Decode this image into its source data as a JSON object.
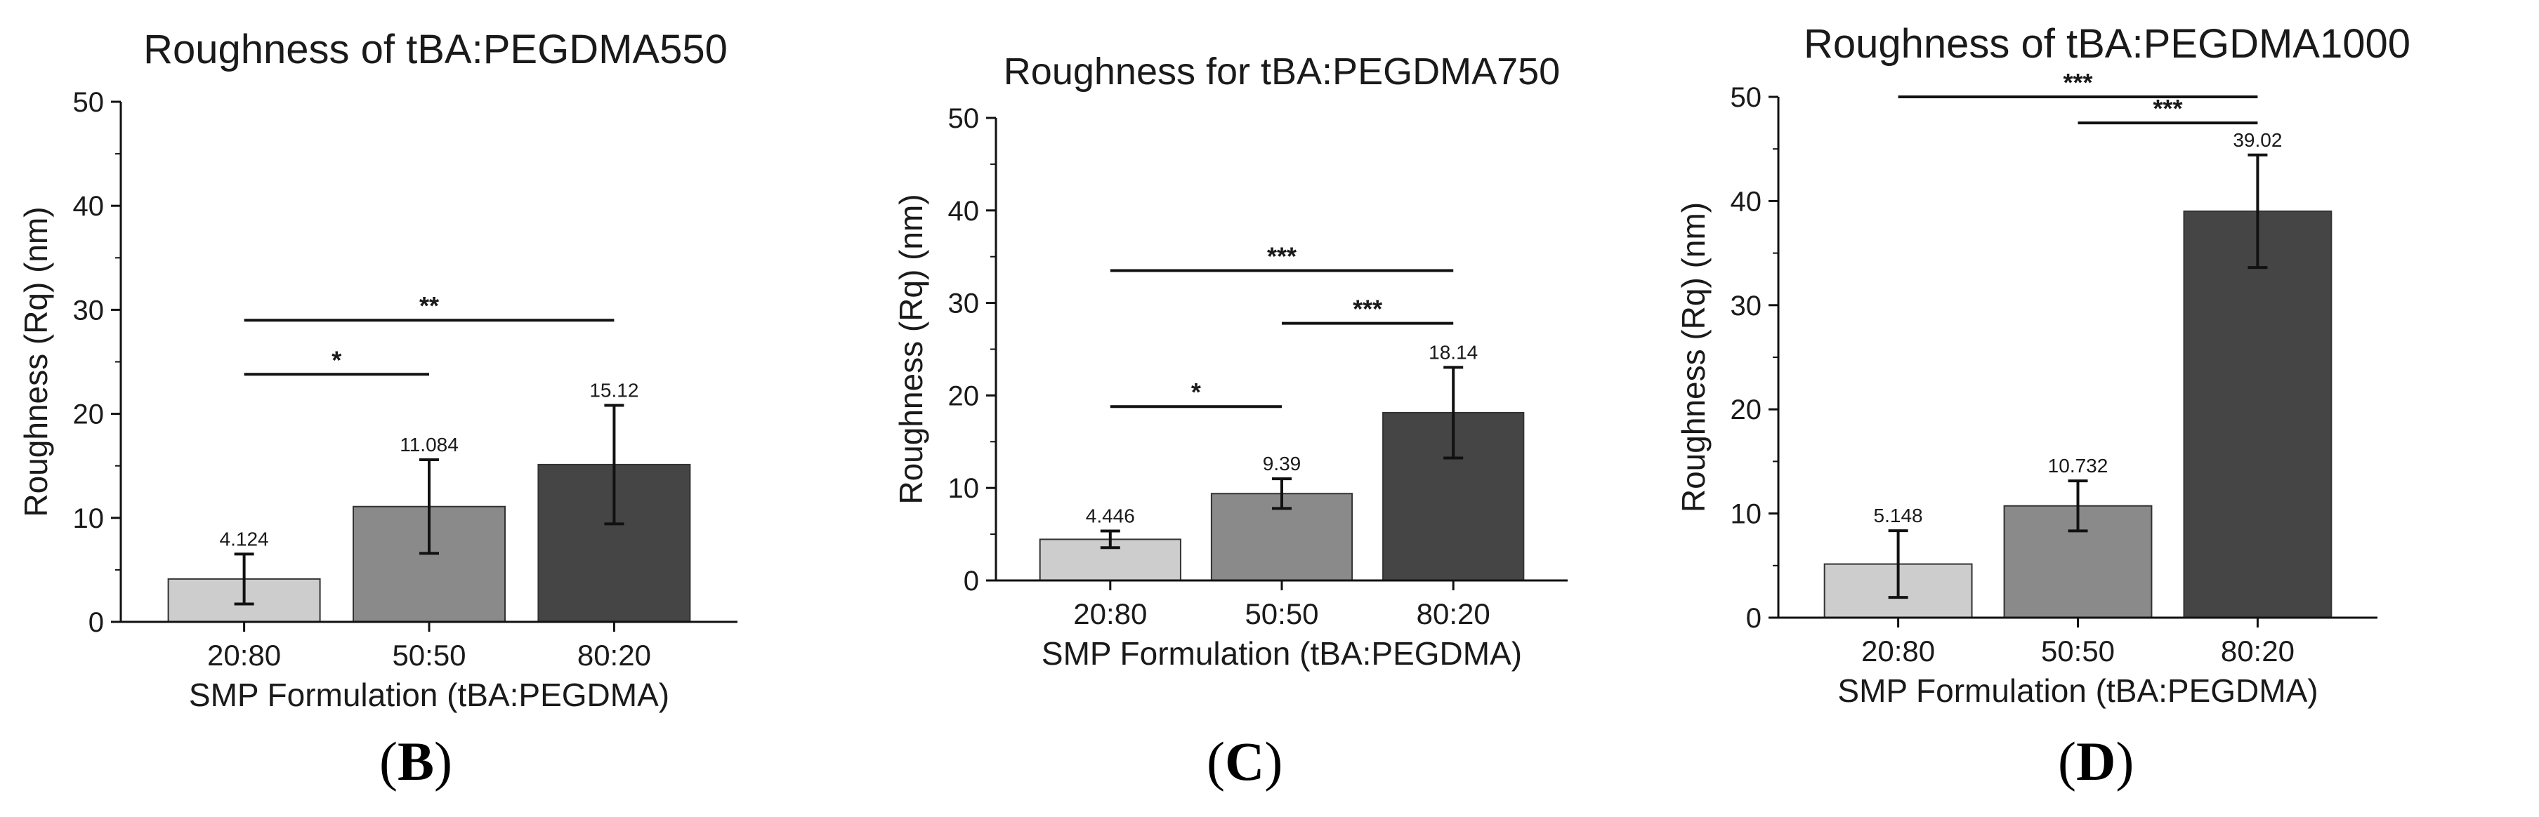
{
  "colors": {
    "axis": "#111111",
    "bar_fills": [
      "#cdcdcd",
      "#8a8a8a",
      "#454545"
    ],
    "bar_stroke": "#333333",
    "text": "#1a1a1a"
  },
  "panel_letters": [
    {
      "open": "(",
      "letter": "B",
      "close": ")"
    },
    {
      "open": "(",
      "letter": "C",
      "close": ")"
    },
    {
      "open": "(",
      "letter": "D",
      "close": ")"
    }
  ],
  "chart_data": [
    {
      "type": "bar",
      "title": "Roughness of tBA:PEGDMA550",
      "xlabel": "SMP Formulation (tBA:PEGDMA)",
      "ylabel": "Roughness (Rq) (nm)",
      "categories": [
        "20:80",
        "50:50",
        "80:20"
      ],
      "values": [
        4.124,
        11.084,
        15.12
      ],
      "value_labels": [
        "4.124",
        "11.084",
        "15.12"
      ],
      "error": [
        2.4,
        4.5,
        5.7
      ],
      "ylim": [
        0,
        50
      ],
      "yticks": [
        "0",
        "10",
        "20",
        "30",
        "40",
        "50"
      ],
      "grid": false,
      "significance": [
        {
          "from": 0,
          "to": 2,
          "y": 29,
          "label": "**"
        },
        {
          "from": 0,
          "to": 1,
          "y": 23.8,
          "label": "*"
        }
      ]
    },
    {
      "type": "bar",
      "title": "Roughness for tBA:PEGDMA750",
      "xlabel": "SMP Formulation (tBA:PEGDMA)",
      "ylabel": "Roughness (Rq) (nm)",
      "categories": [
        "20:80",
        "50:50",
        "80:20"
      ],
      "values": [
        4.446,
        9.39,
        18.14
      ],
      "value_labels": [
        "4.446",
        "9.39",
        "18.14"
      ],
      "error": [
        0.9,
        1.6,
        4.9
      ],
      "ylim": [
        0,
        50
      ],
      "yticks": [
        "0",
        "10",
        "20",
        "30",
        "40",
        "50"
      ],
      "grid": false,
      "significance": [
        {
          "from": 0,
          "to": 2,
          "y": 33.5,
          "label": "***"
        },
        {
          "from": 1,
          "to": 2,
          "y": 27.8,
          "label": "***"
        },
        {
          "from": 0,
          "to": 1,
          "y": 18.8,
          "label": "*"
        }
      ]
    },
    {
      "type": "bar",
      "title": "Roughness of tBA:PEGDMA1000",
      "xlabel": "SMP Formulation (tBA:PEGDMA)",
      "ylabel": "Roughness (Rq) (nm)",
      "categories": [
        "20:80",
        "50:50",
        "80:20"
      ],
      "values": [
        5.148,
        10.732,
        39.02
      ],
      "value_labels": [
        "5.148",
        "10.732",
        "39.02"
      ],
      "error": [
        3.2,
        2.4,
        5.4
      ],
      "ylim": [
        0,
        50
      ],
      "yticks": [
        "0",
        "10",
        "20",
        "30",
        "40",
        "50"
      ],
      "grid": false,
      "significance": [
        {
          "from": 0,
          "to": 2,
          "y": 50,
          "label": "***"
        },
        {
          "from": 1,
          "to": 2,
          "y": 47.5,
          "label": "***"
        }
      ]
    }
  ]
}
